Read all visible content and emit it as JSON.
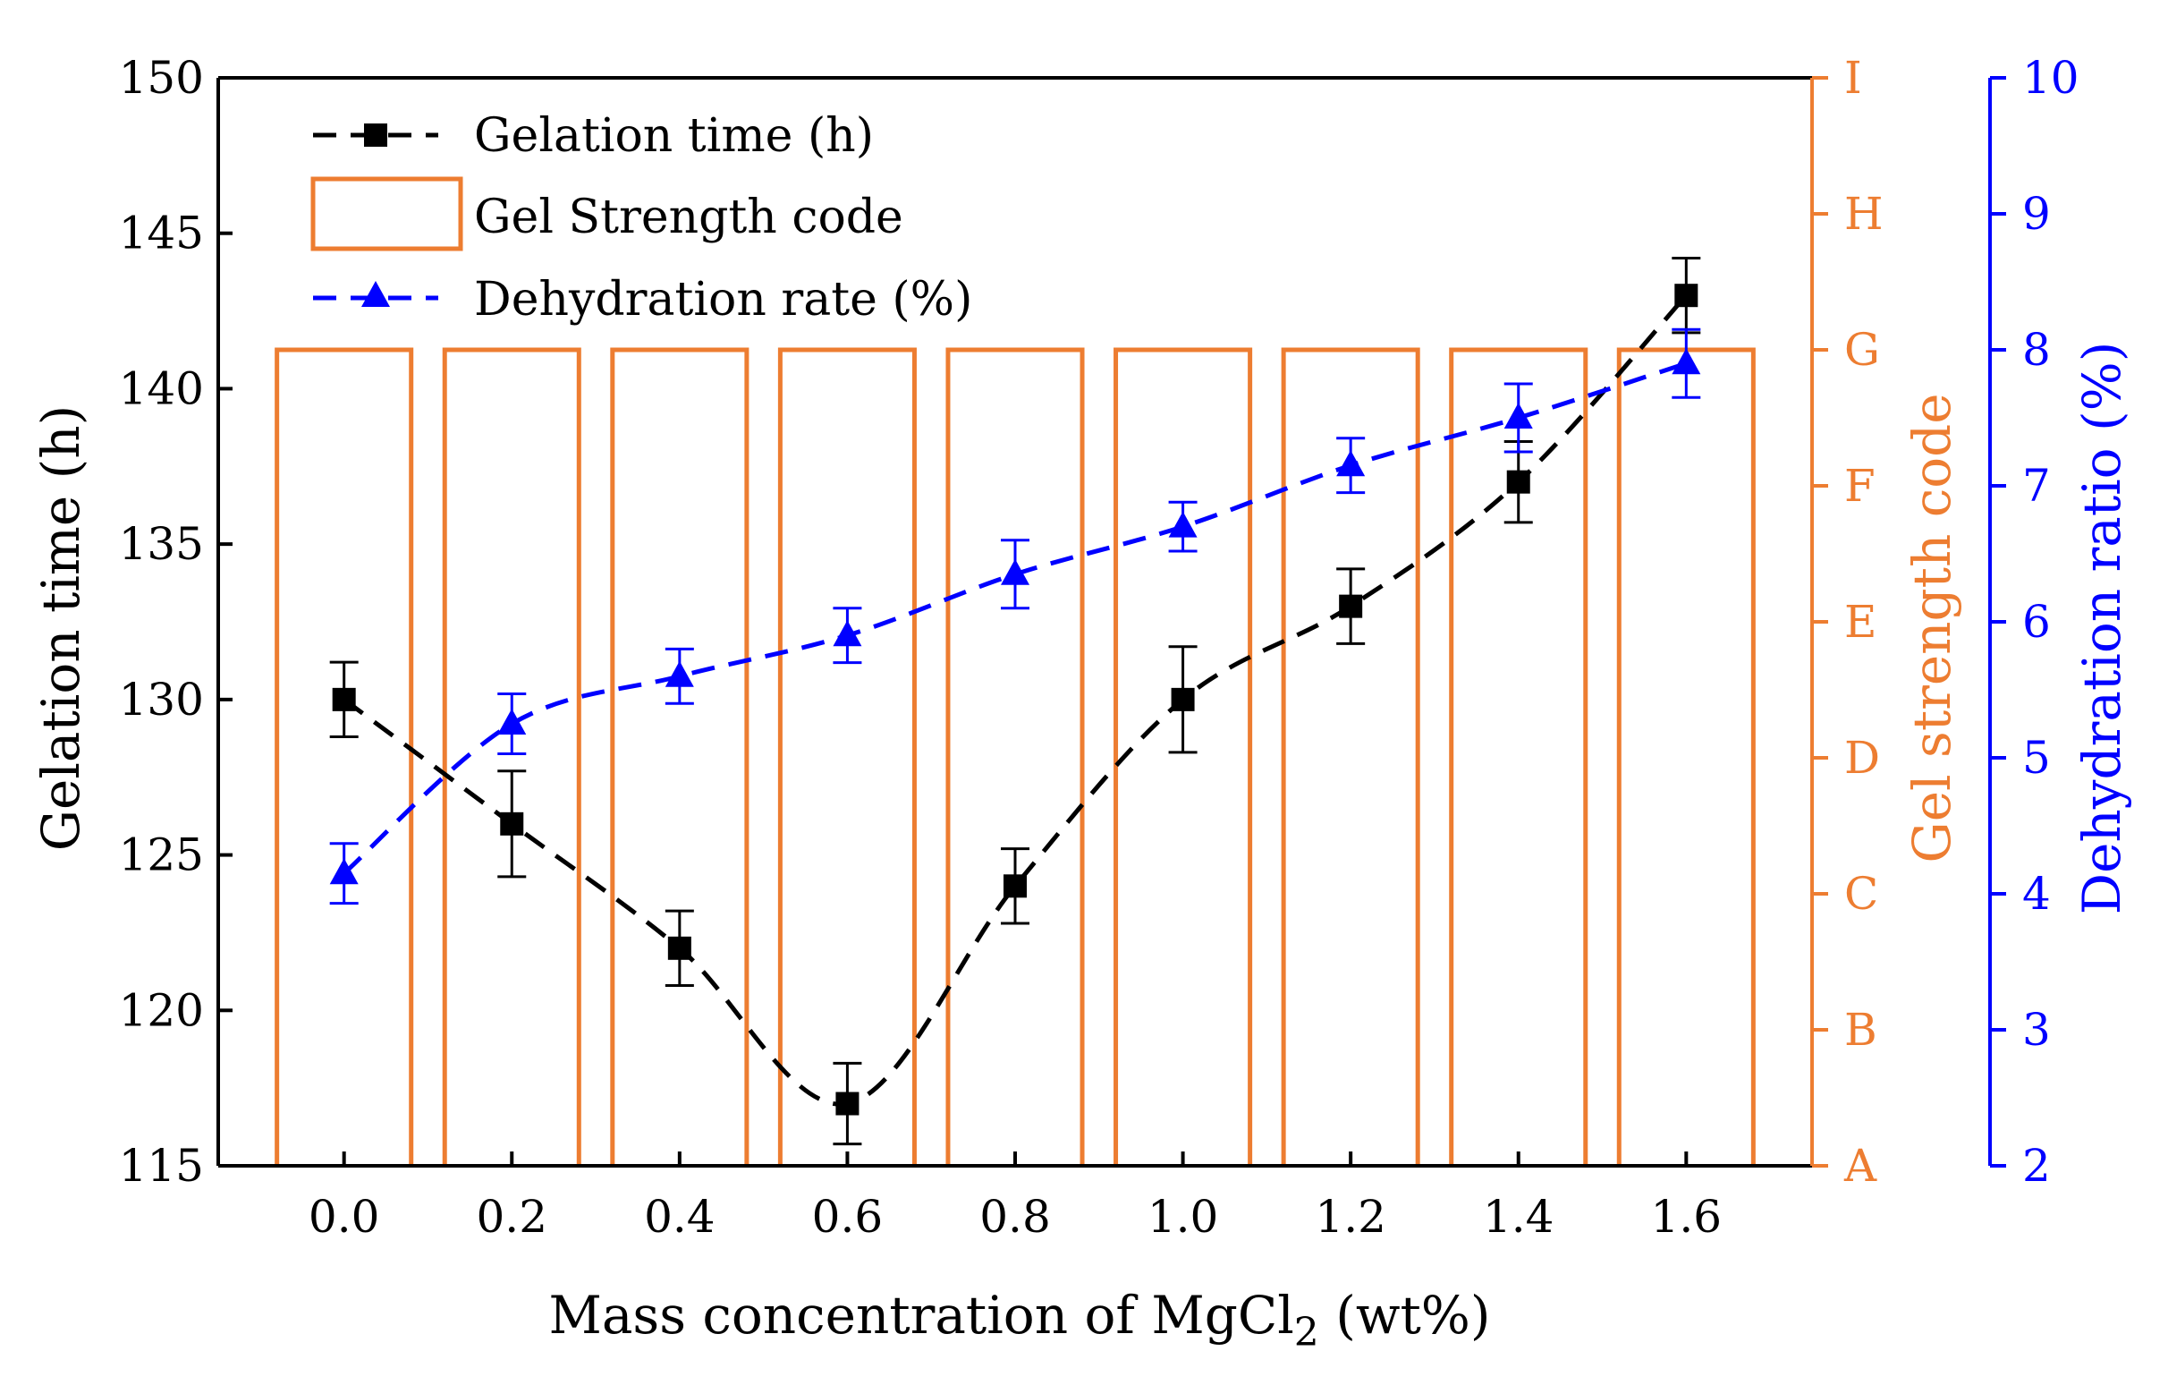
{
  "chart_data": {
    "type": "bar+line",
    "x": [
      0.0,
      0.2,
      0.4,
      0.6,
      0.8,
      1.0,
      1.2,
      1.4,
      1.6
    ],
    "x_tick_labels": [
      "0.0",
      "0.2",
      "0.4",
      "0.6",
      "0.8",
      "1.0",
      "1.2",
      "1.4",
      "1.6"
    ],
    "xlim": [
      -0.15,
      1.75
    ],
    "xlabel": "Mass concentration of MgCl",
    "xlabel_subscript": "2",
    "xlabel_suffix": " (wt%)",
    "left_axis": {
      "label": "Gelation time (h)",
      "ylim": [
        115,
        150
      ],
      "ticks": [
        115,
        120,
        125,
        130,
        135,
        140,
        145,
        150
      ],
      "tick_labels": [
        "115",
        "120",
        "125",
        "130",
        "135",
        "140",
        "145",
        "150"
      ]
    },
    "middle_axis": {
      "label": "Gel strength code",
      "categories": [
        "A",
        "B",
        "C",
        "D",
        "E",
        "F",
        "G",
        "H",
        "I"
      ]
    },
    "right_axis": {
      "label": "Dehydration ratio (%)",
      "ylim": [
        2,
        10
      ],
      "ticks": [
        2,
        3,
        4,
        5,
        6,
        7,
        8,
        9,
        10
      ],
      "tick_labels": [
        "2",
        "3",
        "4",
        "5",
        "6",
        "7",
        "8",
        "9",
        "10"
      ]
    },
    "series": [
      {
        "name": "Gelation time (h)",
        "axis": "left",
        "marker": "square",
        "line": "dashed",
        "values": [
          130,
          126,
          122,
          117,
          124,
          130,
          133,
          137,
          143
        ],
        "errors": [
          1.2,
          1.7,
          1.2,
          1.3,
          1.2,
          1.7,
          1.2,
          1.3,
          1.2
        ]
      },
      {
        "name": "Gel Strength code",
        "axis": "middle",
        "type": "bar",
        "values": [
          "G",
          "G",
          "G",
          "G",
          "G",
          "G",
          "G",
          "G",
          "G"
        ]
      },
      {
        "name": "Dehydration rate (%)",
        "axis": "right",
        "marker": "triangle",
        "line": "dashed",
        "values": [
          4.15,
          5.25,
          5.6,
          5.9,
          6.35,
          6.7,
          7.15,
          7.5,
          7.9
        ],
        "errors": [
          0.22,
          0.22,
          0.2,
          0.2,
          0.25,
          0.18,
          0.2,
          0.25,
          0.25
        ]
      }
    ],
    "colors": {
      "gelation": "#000000",
      "strength": "#ED7D31",
      "dehydration": "#0000FF"
    }
  }
}
